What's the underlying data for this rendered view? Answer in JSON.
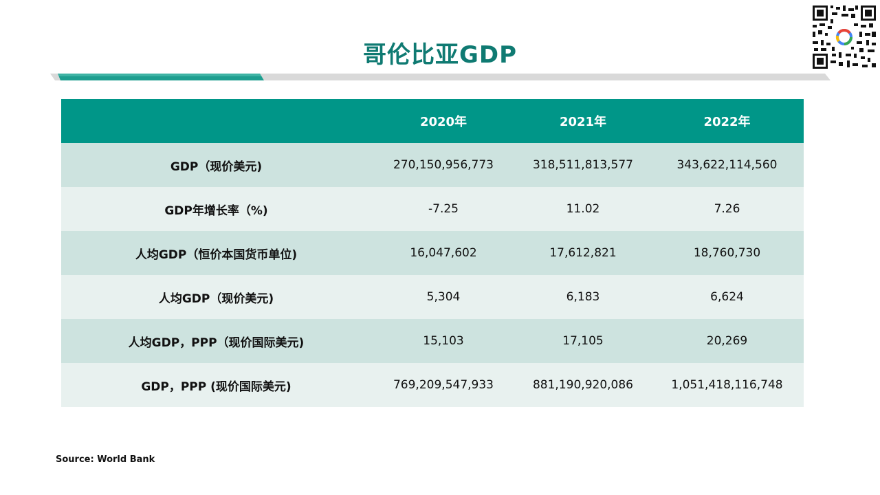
{
  "title": "哥伦比亚GDP",
  "colors": {
    "accent": "#009688",
    "title_text": "#0f7a72",
    "row_dark": "#cde3df",
    "row_light": "#e8f1ef",
    "bar_gray": "#d9d9d9"
  },
  "qr_code": "qr-code-icon",
  "table": {
    "header": [
      "",
      "2020年",
      "2021年",
      "2022年"
    ],
    "rows": [
      {
        "label": "GDP（现价美元)",
        "values": [
          "270,150,956,773",
          "318,511,813,577",
          "343,622,114,560"
        ]
      },
      {
        "label": "GDP年增长率（%)",
        "values": [
          "-7.25",
          "11.02",
          "7.26"
        ]
      },
      {
        "label": "人均GDP（恒价本国货币单位)",
        "values": [
          "16,047,602",
          "17,612,821",
          "18,760,730"
        ]
      },
      {
        "label": "人均GDP（现价美元)",
        "values": [
          "5,304",
          "6,183",
          "6,624"
        ]
      },
      {
        "label": "人均GDP，PPP（现价国际美元)",
        "values": [
          "15,103",
          "17,105",
          "20,269"
        ]
      },
      {
        "label": "GDP，PPP (现价国际美元)",
        "values": [
          "769,209,547,933",
          "881,190,920,086",
          "1,051,418,116,748"
        ]
      }
    ]
  },
  "source": "Source: World Bank"
}
